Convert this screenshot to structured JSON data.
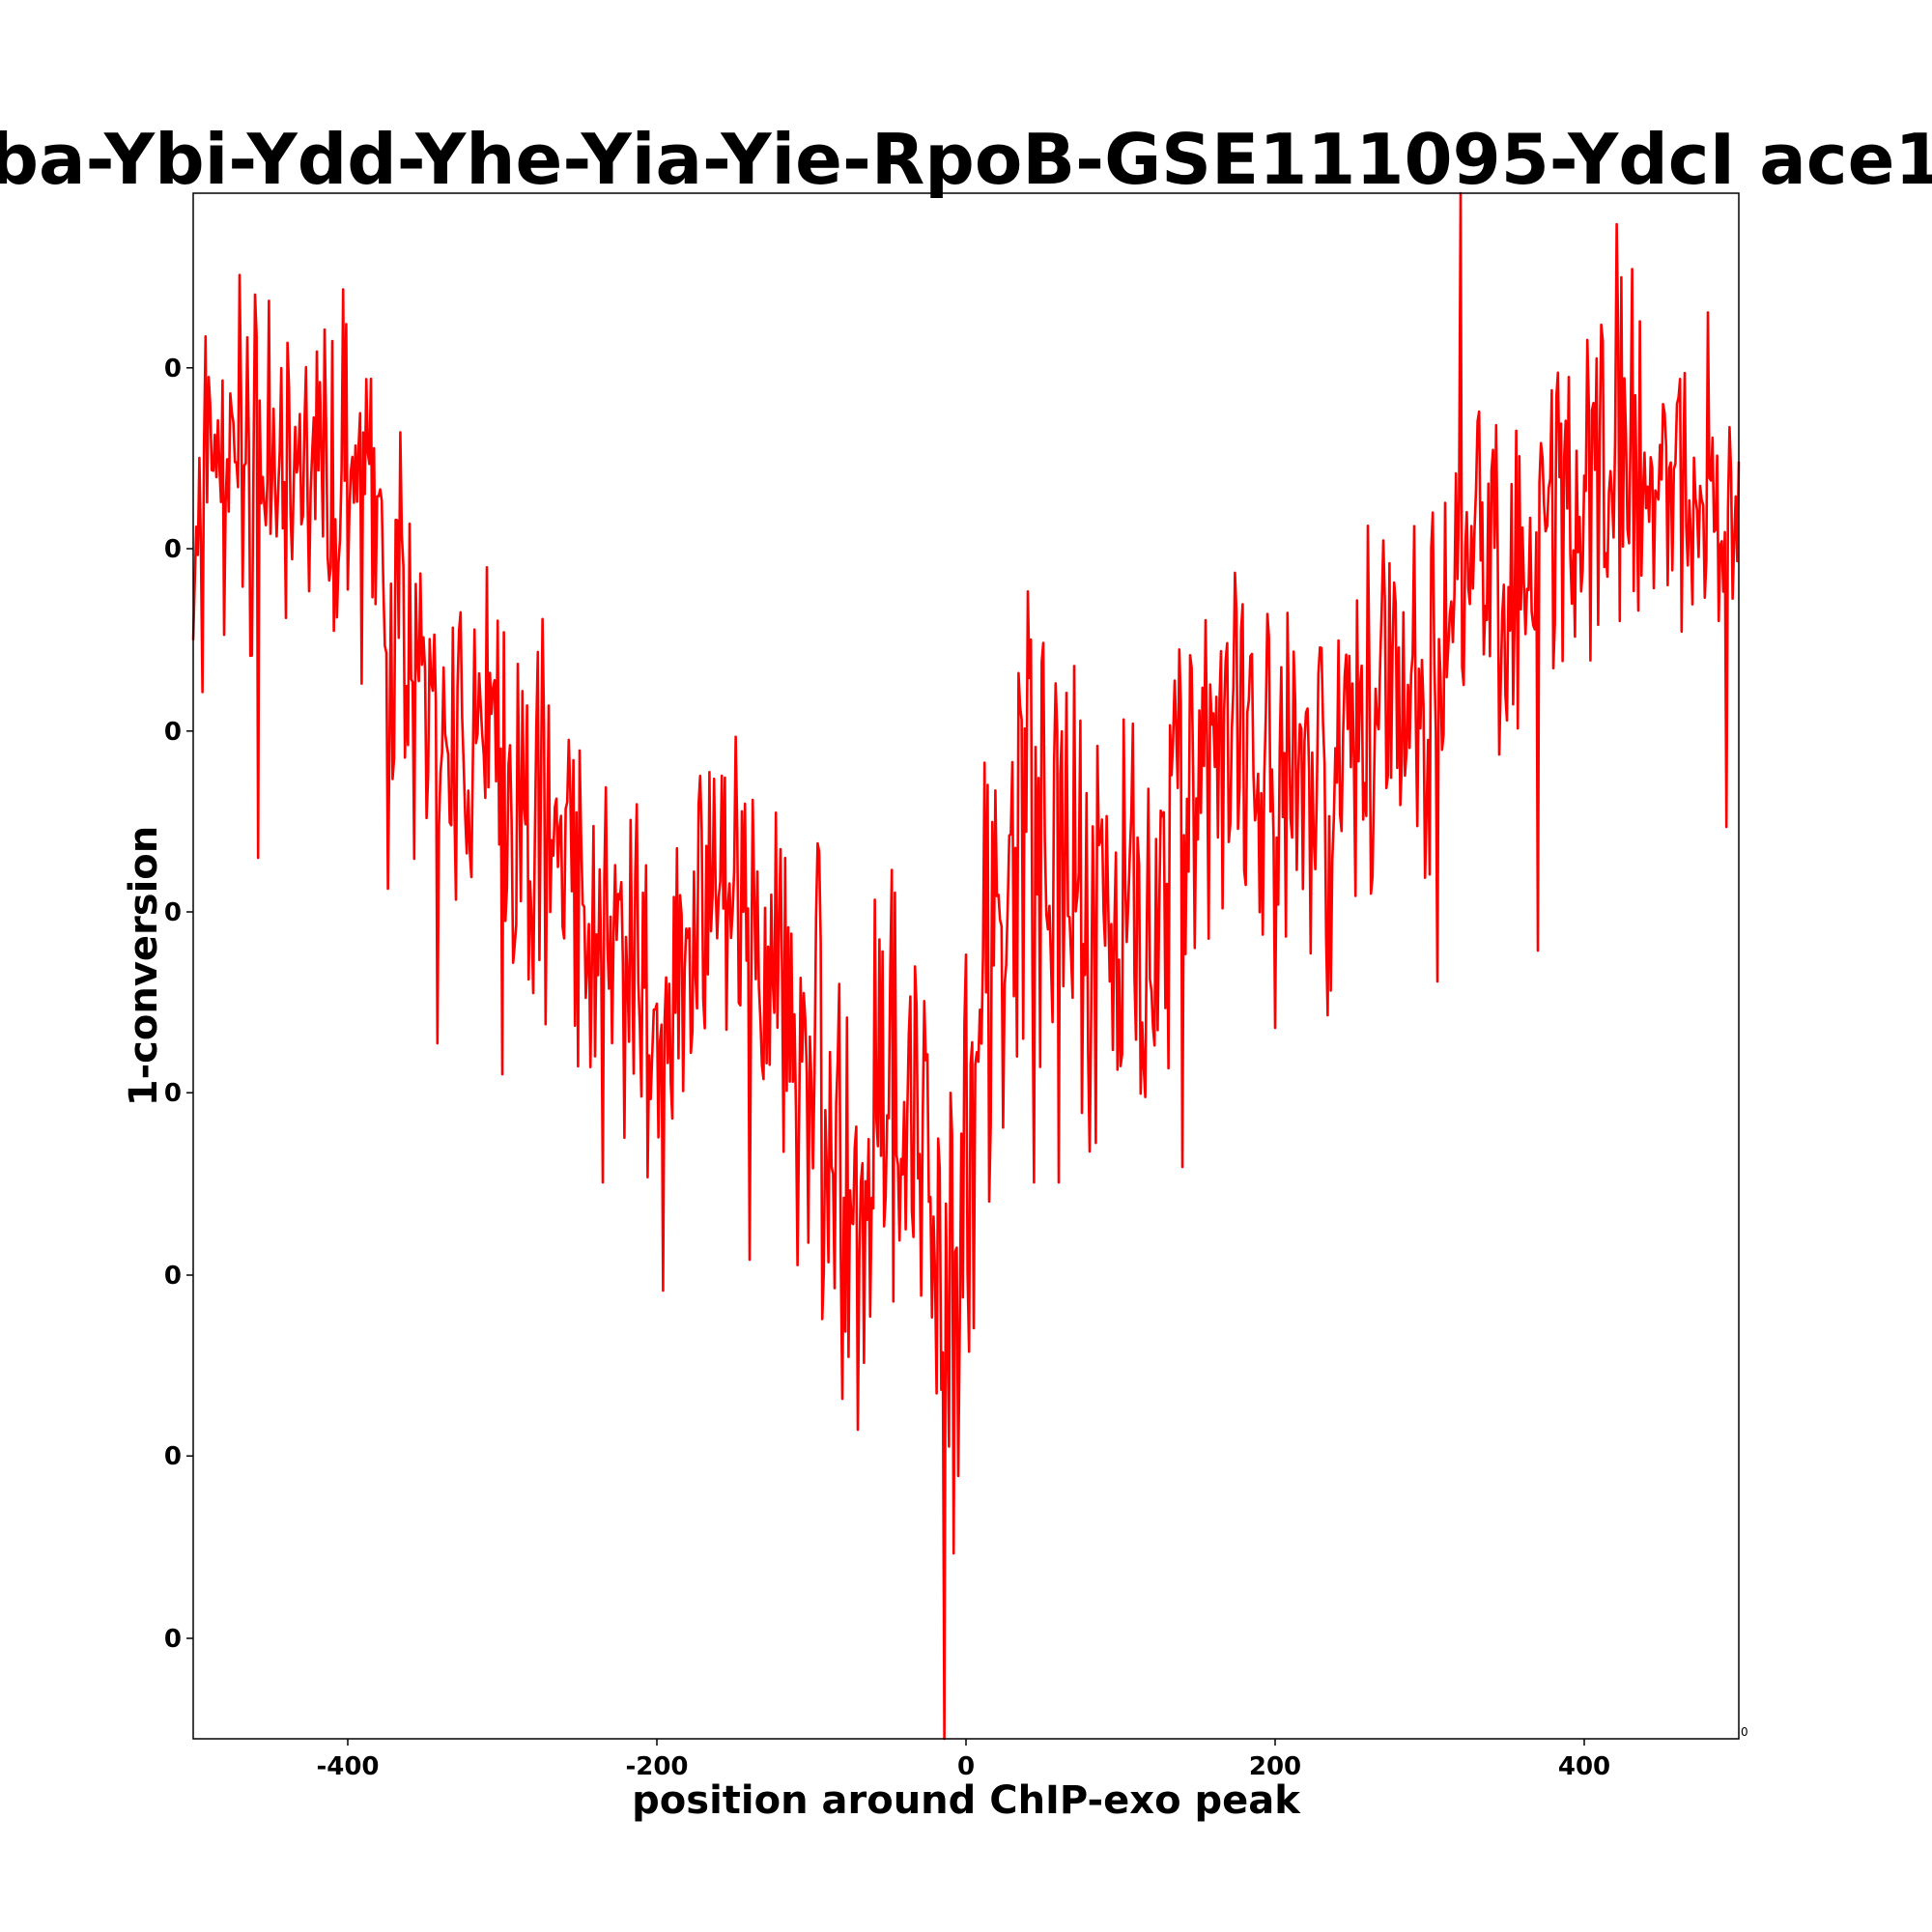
{
  "chart_data": {
    "type": "line",
    "title": "ba-Ybi-Ydd-Yhe-Yia-Yie-RpoB-GSE111095-YdcI ace1",
    "xlabel": "position around ChIP-exo peak",
    "ylabel": "1-conversion",
    "xlim": [
      -500,
      500
    ],
    "ylim": [
      0,
      1
    ],
    "grid": false,
    "legend": "none",
    "line_color": "#ff0000",
    "x_ticks": [
      {
        "value": -400,
        "label": "-400"
      },
      {
        "value": -200,
        "label": "-200"
      },
      {
        "value": 0,
        "label": "0"
      },
      {
        "value": 200,
        "label": "200"
      },
      {
        "value": 400,
        "label": "400"
      }
    ],
    "x_corner_label": {
      "value": 500,
      "label": "0"
    },
    "y_ticks": [
      {
        "value": 0.887,
        "label": "0"
      },
      {
        "value": 0.77,
        "label": "0"
      },
      {
        "value": 0.652,
        "label": "0"
      },
      {
        "value": 0.535,
        "label": "0"
      },
      {
        "value": 0.418,
        "label": "0"
      },
      {
        "value": 0.3,
        "label": "0"
      },
      {
        "value": 0.183,
        "label": "0"
      },
      {
        "value": 0.065,
        "label": "0"
      }
    ],
    "anchors": [
      [
        -500,
        0.7
      ],
      [
        -490,
        0.82
      ],
      [
        -470,
        0.84
      ],
      [
        -460,
        0.83
      ],
      [
        -440,
        0.8
      ],
      [
        -420,
        0.82
      ],
      [
        -400,
        0.8
      ],
      [
        -380,
        0.76
      ],
      [
        -360,
        0.7
      ],
      [
        -340,
        0.64
      ],
      [
        -320,
        0.66
      ],
      [
        -300,
        0.62
      ],
      [
        -280,
        0.58
      ],
      [
        -260,
        0.6
      ],
      [
        -240,
        0.5
      ],
      [
        -220,
        0.52
      ],
      [
        -200,
        0.46
      ],
      [
        -180,
        0.55
      ],
      [
        -160,
        0.58
      ],
      [
        -140,
        0.52
      ],
      [
        -120,
        0.48
      ],
      [
        -100,
        0.42
      ],
      [
        -80,
        0.36
      ],
      [
        -60,
        0.4
      ],
      [
        -40,
        0.42
      ],
      [
        -20,
        0.36
      ],
      [
        -10,
        0.3
      ],
      [
        0,
        0.38
      ],
      [
        20,
        0.55
      ],
      [
        40,
        0.6
      ],
      [
        60,
        0.56
      ],
      [
        80,
        0.52
      ],
      [
        100,
        0.56
      ],
      [
        120,
        0.54
      ],
      [
        140,
        0.6
      ],
      [
        160,
        0.66
      ],
      [
        180,
        0.64
      ],
      [
        200,
        0.62
      ],
      [
        220,
        0.58
      ],
      [
        240,
        0.62
      ],
      [
        260,
        0.66
      ],
      [
        280,
        0.68
      ],
      [
        300,
        0.66
      ],
      [
        320,
        0.72
      ],
      [
        340,
        0.76
      ],
      [
        360,
        0.74
      ],
      [
        380,
        0.78
      ],
      [
        400,
        0.8
      ],
      [
        420,
        0.84
      ],
      [
        440,
        0.82
      ],
      [
        460,
        0.83
      ],
      [
        480,
        0.84
      ],
      [
        500,
        0.82
      ]
    ],
    "noise_amplitude": 0.09,
    "spikes": [
      [
        -458,
        0.57
      ],
      [
        -374,
        0.55
      ],
      [
        -342,
        0.45
      ],
      [
        -300,
        0.43
      ],
      [
        -235,
        0.36
      ],
      [
        -196,
        0.29
      ],
      [
        -140,
        0.31
      ],
      [
        -80,
        0.22
      ],
      [
        -70,
        0.2
      ],
      [
        -15,
        0.25
      ],
      [
        -14,
        0.0
      ],
      [
        -8,
        0.12
      ],
      [
        -4,
        0.27
      ],
      [
        44,
        0.36
      ],
      [
        60,
        0.36
      ],
      [
        80,
        0.38
      ],
      [
        140,
        0.37
      ],
      [
        200,
        0.46
      ],
      [
        305,
        0.49
      ],
      [
        320,
        1.0
      ],
      [
        370,
        0.51
      ],
      [
        421,
        0.98
      ],
      [
        492,
        0.59
      ]
    ]
  }
}
